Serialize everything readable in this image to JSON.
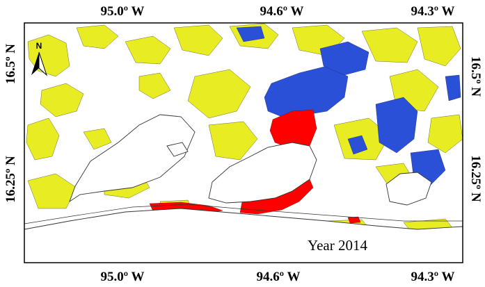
{
  "axes": {
    "top": [
      "95.0º W",
      "94.6º W",
      "94.3º W"
    ],
    "bottom": [
      "95.0º W",
      "94.6º W",
      "94.3º W"
    ],
    "left": [
      "16.5º N",
      "16.25º N"
    ],
    "right": [
      "16.5º N",
      "16.25º N"
    ]
  },
  "north_arrow": {
    "letter": "N"
  },
  "annotation": {
    "year_label": "Year 2014"
  },
  "colors": {
    "frame": "#000000",
    "background": "#ffffff",
    "coastline": "#333333",
    "class_yellow": "#e8ec23",
    "class_blue": "#2b50d8",
    "class_red": "#ff0000"
  }
}
